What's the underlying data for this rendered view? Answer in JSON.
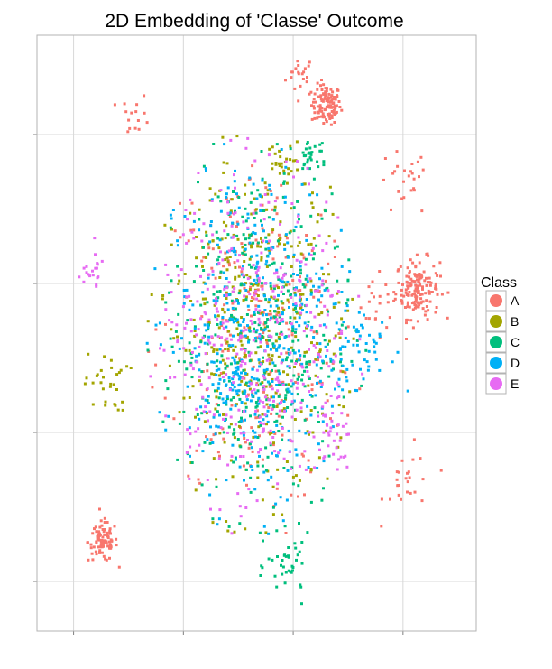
{
  "chart_data": {
    "type": "scatter",
    "title": "2D Embedding of 'Classe' Outcome",
    "xlabel": "",
    "ylabel": "",
    "xlim": [
      -60,
      60
    ],
    "ylim": [
      -60,
      60
    ],
    "grid": true,
    "legend_position": "right",
    "legend_title": "Class",
    "x_ticks": [
      -50,
      -20,
      10,
      40
    ],
    "y_ticks": [
      -50,
      -20,
      10,
      40
    ],
    "series": [
      {
        "name": "A",
        "color": "#F8766D",
        "clusters": [
          {
            "x": 12,
            "y": 52,
            "n": 20,
            "spread": 2.0
          },
          {
            "x": 19,
            "y": 46,
            "n": 120,
            "spread": 2.0
          },
          {
            "x": 44,
            "y": 9,
            "n": 160,
            "spread": 3.0
          },
          {
            "x": -42,
            "y": -42,
            "n": 90,
            "spread": 2.0
          },
          {
            "x": 40,
            "y": 30,
            "n": 25,
            "spread": 3.5
          },
          {
            "x": 33,
            "y": 4,
            "n": 20,
            "spread": 3.0
          },
          {
            "x": 42,
            "y": -30,
            "n": 25,
            "spread": 3.5
          },
          {
            "x": -33,
            "y": 44,
            "n": 15,
            "spread": 2.0
          },
          {
            "x": 0,
            "y": 0,
            "n": 260,
            "spread": 24.0
          }
        ]
      },
      {
        "name": "B",
        "color": "#A3A500",
        "clusters": [
          {
            "x": 6,
            "y": 34,
            "n": 25,
            "spread": 2.0
          },
          {
            "x": -41,
            "y": -10,
            "n": 30,
            "spread": 3.0
          },
          {
            "x": 0,
            "y": 0,
            "n": 380,
            "spread": 24.0
          }
        ]
      },
      {
        "name": "C",
        "color": "#00BF7D",
        "clusters": [
          {
            "x": 15,
            "y": 36,
            "n": 30,
            "spread": 2.0
          },
          {
            "x": 9,
            "y": -47,
            "n": 40,
            "spread": 3.0
          },
          {
            "x": 0,
            "y": 0,
            "n": 400,
            "spread": 24.0
          }
        ]
      },
      {
        "name": "D",
        "color": "#00B0F6",
        "clusters": [
          {
            "x": -5,
            "y": -10,
            "n": 40,
            "spread": 3.0
          },
          {
            "x": 30,
            "y": -3,
            "n": 40,
            "spread": 4.0
          },
          {
            "x": 0,
            "y": 0,
            "n": 420,
            "spread": 24.0
          }
        ]
      },
      {
        "name": "E",
        "color": "#E76BF3",
        "clusters": [
          {
            "x": -45,
            "y": 12,
            "n": 20,
            "spread": 2.0
          },
          {
            "x": 20,
            "y": -22,
            "n": 30,
            "spread": 3.0
          },
          {
            "x": 0,
            "y": 0,
            "n": 400,
            "spread": 24.0
          }
        ]
      }
    ]
  },
  "theme": {
    "grid_color": "#d8d8d8",
    "panel_border": "#b3b3b3",
    "background": "#ffffff"
  }
}
